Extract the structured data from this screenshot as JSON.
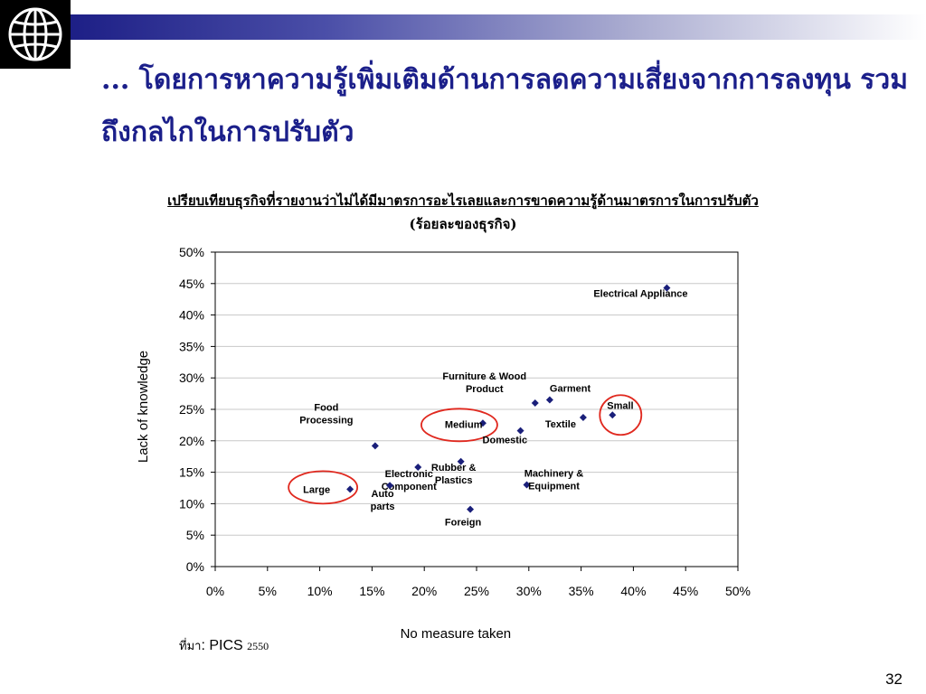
{
  "title": "... โดยการหาความรู้เพิ่มเติมด้านการลดความเสี่ยงจากการลงทุน รวมถึงกลไกในการปรับตัว",
  "chart_title_line1": "เปรียบเทียบธุรกิจที่รายงานว่าไม่ได้มีมาตรการอะไรเลยและการขาดความรู้ด้านมาตรการในการปรับตัว",
  "chart_title_line2": "(ร้อยละของธุรกิจ)",
  "source_prefix": "ที่มา",
  "source_name": ": PICS",
  "source_year": "2550",
  "page_number": "32",
  "colors": {
    "title": "#1b1f8a",
    "marker": "#1a1f7a",
    "highlight": "#e0281e",
    "banner_start": "#1d1f86"
  },
  "chart_data": {
    "type": "scatter",
    "xlabel": "No measure taken",
    "ylabel": "Lack of knowledge",
    "xlim": [
      0,
      50
    ],
    "ylim": [
      0,
      50
    ],
    "xticks": [
      "0%",
      "5%",
      "10%",
      "15%",
      "20%",
      "25%",
      "30%",
      "35%",
      "40%",
      "45%",
      "50%"
    ],
    "yticks": [
      "0%",
      "5%",
      "10%",
      "15%",
      "20%",
      "25%",
      "30%",
      "35%",
      "40%",
      "45%",
      "50%"
    ],
    "grid": "horizontal",
    "points": [
      {
        "label": "Electrical Appliance",
        "x": 43.2,
        "y": 44.3
      },
      {
        "label": "Furniture & Wood Product",
        "x": 30.6,
        "y": 26.0
      },
      {
        "label": "Garment",
        "x": 32.0,
        "y": 26.5
      },
      {
        "label": "Small",
        "x": 38.0,
        "y": 24.1,
        "highlight": true
      },
      {
        "label": "Textile",
        "x": 35.2,
        "y": 23.7
      },
      {
        "label": "Medium",
        "x": 25.6,
        "y": 22.8,
        "highlight": true
      },
      {
        "label": "Domestic",
        "x": 29.2,
        "y": 21.6
      },
      {
        "label": "Food Processing",
        "x": 15.3,
        "y": 19.2
      },
      {
        "label": "Electronic Component",
        "x": 19.4,
        "y": 15.8
      },
      {
        "label": "Rubber & Plastics",
        "x": 23.5,
        "y": 16.7
      },
      {
        "label": "Machinery & Equipment",
        "x": 29.8,
        "y": 13.0
      },
      {
        "label": "Large",
        "x": 12.9,
        "y": 12.3,
        "highlight": true
      },
      {
        "label": "Auto parts",
        "x": 16.7,
        "y": 12.9
      },
      {
        "label": "Foreign",
        "x": 24.4,
        "y": 9.1
      }
    ]
  }
}
